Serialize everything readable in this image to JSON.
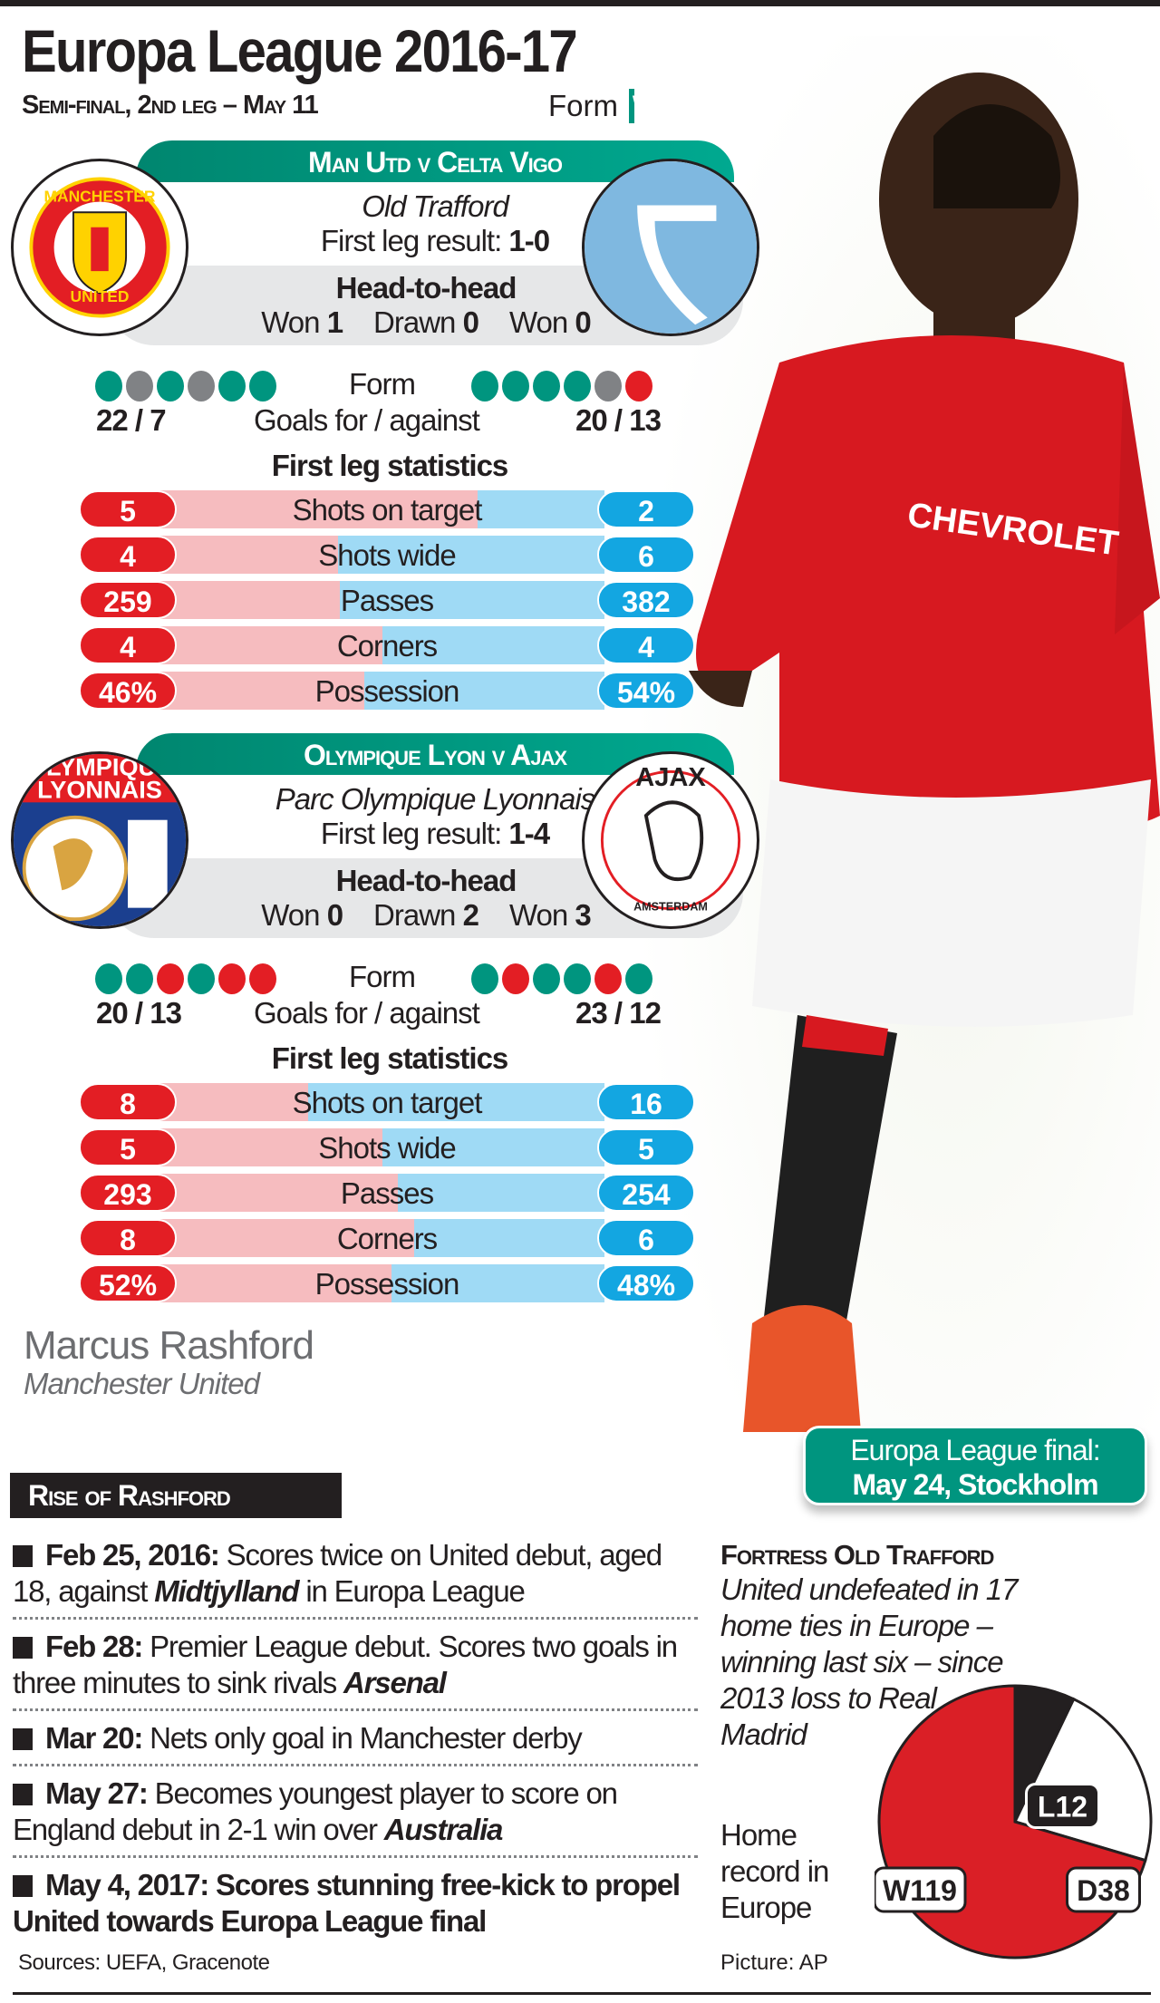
{
  "header": {
    "title": "Europa League 2016-17",
    "subtitle": "Semi-final, 2nd leg – May 11",
    "form_label": "Form",
    "form_legend": [
      {
        "key": "W",
        "color": "#00957f"
      },
      {
        "key": "D",
        "color": "#808285"
      },
      {
        "key": "L",
        "color": "#e31e24"
      }
    ]
  },
  "matches": [
    {
      "title": "Man Utd v Celta Vigo",
      "home": "Manchester United",
      "away": "Celta Vigo",
      "home_crest_text": [
        "MANCHESTER",
        "UNITED"
      ],
      "venue": "Old Trafford",
      "result_label": "First leg result:",
      "result": "1-0",
      "h2h_title": "Head-to-head",
      "h2h": [
        {
          "label": "Won",
          "value": "1"
        },
        {
          "label": "Drawn",
          "value": "0"
        },
        {
          "label": "Won",
          "value": "0"
        }
      ],
      "form_label": "Form",
      "home_form": [
        "W",
        "D",
        "W",
        "D",
        "W",
        "W"
      ],
      "away_form": [
        "W",
        "W",
        "W",
        "W",
        "D",
        "L"
      ],
      "goals_label": "Goals for / against",
      "home_goals": "22 / 7",
      "away_goals": "20 / 13",
      "stats_title": "First leg statistics",
      "stats": [
        {
          "name": "Shots on target",
          "home": "5",
          "away": "2",
          "hv": 5,
          "av": 2
        },
        {
          "name": "Shots wide",
          "home": "4",
          "away": "6",
          "hv": 4,
          "av": 6
        },
        {
          "name": "Passes",
          "home": "259",
          "away": "382",
          "hv": 259,
          "av": 382
        },
        {
          "name": "Corners",
          "home": "4",
          "away": "4",
          "hv": 4,
          "av": 4
        },
        {
          "name": "Possession",
          "home": "46%",
          "away": "54%",
          "hv": 46,
          "av": 54
        }
      ]
    },
    {
      "title": "Olympique Lyon v Ajax",
      "home": "Olympique Lyonnais",
      "away": "Ajax",
      "home_crest_text": [
        "OLYMPIQUE",
        "LYONNAIS"
      ],
      "away_crest_text": [
        "AJAX",
        "AMSTERDAM"
      ],
      "venue": "Parc Olympique Lyonnais",
      "result_label": "First leg result:",
      "result": "1-4",
      "h2h_title": "Head-to-head",
      "h2h": [
        {
          "label": "Won",
          "value": "0"
        },
        {
          "label": "Drawn",
          "value": "2"
        },
        {
          "label": "Won",
          "value": "3"
        }
      ],
      "form_label": "Form",
      "home_form": [
        "W",
        "W",
        "L",
        "W",
        "L",
        "L"
      ],
      "away_form": [
        "W",
        "L",
        "W",
        "W",
        "L",
        "W"
      ],
      "goals_label": "Goals for / against",
      "home_goals": "20 / 13",
      "away_goals": "23 / 12",
      "stats_title": "First leg statistics",
      "stats": [
        {
          "name": "Shots on target",
          "home": "8",
          "away": "16",
          "hv": 8,
          "av": 16
        },
        {
          "name": "Shots wide",
          "home": "5",
          "away": "5",
          "hv": 5,
          "av": 5
        },
        {
          "name": "Passes",
          "home": "293",
          "away": "254",
          "hv": 293,
          "av": 254
        },
        {
          "name": "Corners",
          "home": "8",
          "away": "6",
          "hv": 8,
          "av": 6
        },
        {
          "name": "Possession",
          "home": "52%",
          "away": "48%",
          "hv": 52,
          "av": 48
        }
      ]
    }
  ],
  "player": {
    "name": "Marcus Rashford",
    "club": "Manchester United",
    "shirt_sponsor": "CHEVROLET"
  },
  "final": {
    "line1": "Europa League final:",
    "line2": "May 24, Stockholm"
  },
  "rise": {
    "title": "Rise of Rashford",
    "items": [
      {
        "date": "Feb 25, 2016:",
        "parts": [
          " Scores twice on United debut, aged 18, against ",
          {
            "b": "Midtjylland"
          },
          " in Europa League"
        ]
      },
      {
        "date": "Feb 28:",
        "parts": [
          " Premier League debut. Scores two goals in three minutes to sink rivals ",
          {
            "b": "Arsenal"
          }
        ]
      },
      {
        "date": "Mar 20:",
        "parts": [
          " Nets only goal in Manchester derby"
        ]
      },
      {
        "date": "May 27:",
        "parts": [
          " Becomes youngest player to score on England debut in 2-1 win over ",
          {
            "b": "Australia"
          }
        ]
      },
      {
        "date": "May 4, 2017:",
        "parts": [
          {
            "bb": " Scores stunning free-kick to propel United towards Europa League final"
          }
        ]
      }
    ]
  },
  "fortress": {
    "title": "Fortress Old Trafford",
    "text": "United undefeated in 17 home ties in Europe – winning last six – since 2013 loss to Real Madrid",
    "home_record": "Home record in Europe",
    "chart_data": {
      "type": "pie",
      "slices": [
        {
          "label": "L12",
          "key": "L",
          "value": 12,
          "color": "#231f20"
        },
        {
          "label": "D38",
          "key": "D",
          "value": 38,
          "color": "#ffffff"
        },
        {
          "label": "W119",
          "key": "W",
          "value": 119,
          "color": "#da1f26"
        }
      ]
    }
  },
  "footer": {
    "sources": "Sources: UEFA, Gracenote",
    "picture": "Picture: AP"
  },
  "colors": {
    "win": "#00957f",
    "draw": "#808285",
    "loss": "#e31e24",
    "home_pill": "#e31e24",
    "away_pill": "#13a6e1",
    "home_bar": "#f6bcbf",
    "away_bar": "#9fdaf5"
  }
}
